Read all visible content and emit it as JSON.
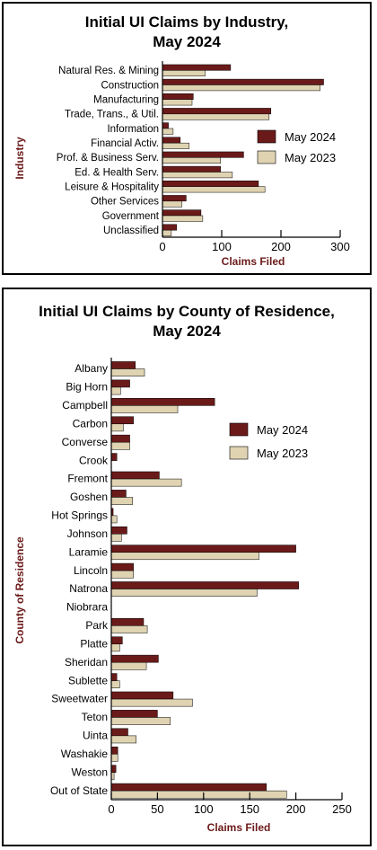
{
  "colors": {
    "may2024": "#6b1a1a",
    "may2023": "#dfd3b2",
    "axis": "#000000"
  },
  "chart_data": [
    {
      "type": "bar",
      "orientation": "horizontal",
      "title_line1": "Initial UI Claims by Industry,",
      "title_line2": "May 2024",
      "xlabel": "Claims Filed",
      "ylabel": "Industry",
      "xlim": [
        0,
        300
      ],
      "xticks": [
        "0",
        "100",
        "200",
        "300"
      ],
      "legend_position": "right",
      "grid": false,
      "categories": [
        "Natural Res. & Mining",
        "Construction",
        "Manufacturing",
        "Trade, Trans., & Util.",
        "Information",
        "Financial Activ.",
        "Prof. & Business Serv.",
        "Ed. & Health Serv.",
        "Leisure & Hospitality",
        "Other Services",
        "Government",
        "Unclassified"
      ],
      "series": [
        {
          "name": "May 2024",
          "values": [
            115,
            272,
            52,
            183,
            10,
            30,
            137,
            98,
            162,
            40,
            65,
            24
          ]
        },
        {
          "name": "May 2023",
          "values": [
            72,
            266,
            50,
            180,
            18,
            45,
            98,
            118,
            173,
            33,
            68,
            15
          ]
        }
      ]
    },
    {
      "type": "bar",
      "orientation": "horizontal",
      "title_line1": "Initial UI Claims by County of Residence,",
      "title_line2": "May 2024",
      "xlabel": "Claims Filed",
      "ylabel": "County of Residence",
      "xlim": [
        0,
        250
      ],
      "xticks": [
        "0",
        "50",
        "100",
        "150",
        "200",
        "250"
      ],
      "legend_position": "right",
      "grid": false,
      "categories": [
        "Albany",
        "Big Horn",
        "Campbell",
        "Carbon",
        "Converse",
        "Crook",
        "Fremont",
        "Goshen",
        "Hot Springs",
        "Johnson",
        "Laramie",
        "Lincoln",
        "Natrona",
        "Niobrara",
        "Park",
        "Platte",
        "Sheridan",
        "Sublette",
        "Sweetwater",
        "Teton",
        "Uinta",
        "Washakie",
        "Weston",
        "Out of State"
      ],
      "series": [
        {
          "name": "May 2024",
          "values": [
            26,
            20,
            112,
            24,
            20,
            6,
            52,
            16,
            2,
            17,
            200,
            24,
            203,
            0,
            35,
            12,
            51,
            6,
            67,
            50,
            18,
            7,
            5,
            168
          ]
        },
        {
          "name": "May 2023",
          "values": [
            36,
            10,
            72,
            13,
            20,
            0,
            76,
            23,
            6,
            11,
            160,
            24,
            158,
            0,
            39,
            9,
            38,
            9,
            88,
            64,
            27,
            7,
            3,
            190
          ]
        }
      ]
    }
  ]
}
